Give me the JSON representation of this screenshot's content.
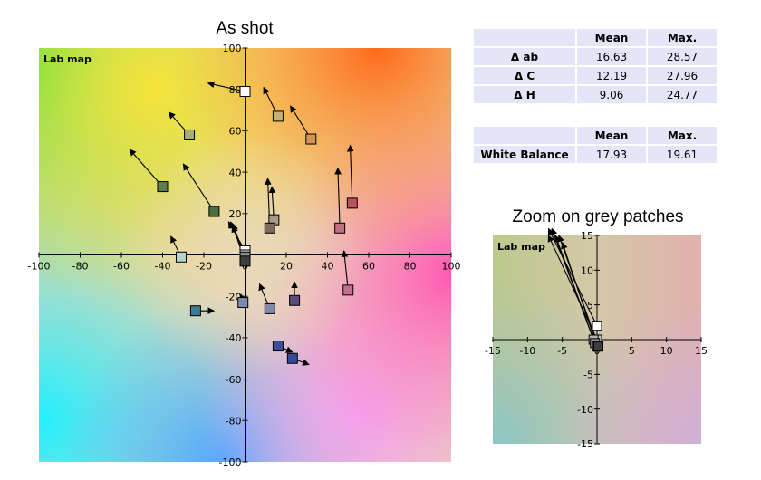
{
  "colors": {
    "axis": "#000000",
    "arrow": "#000000",
    "table_cell": "#e5e5f8"
  },
  "table1": {
    "headers": [
      "",
      "Mean",
      "Max."
    ],
    "rows": [
      {
        "label": "Δ ab",
        "mean": "16.63",
        "max": "28.57"
      },
      {
        "label": "Δ C",
        "mean": "12.19",
        "max": "27.96"
      },
      {
        "label": "Δ H",
        "mean": "9.06",
        "max": "24.77"
      }
    ]
  },
  "table2": {
    "headers": [
      "",
      "Mean",
      "Max."
    ],
    "rows": [
      {
        "label": "White Balance",
        "mean": "17.93",
        "max": "19.61"
      }
    ]
  },
  "chart_data": [
    {
      "type": "scatter",
      "title": "As shot",
      "inner_label": "Lab map",
      "xlim": [
        -100,
        100
      ],
      "ylim": [
        -100,
        100
      ],
      "xticks": [
        -100,
        -80,
        -60,
        -40,
        -20,
        0,
        20,
        40,
        60,
        80,
        100
      ],
      "yticks": [
        -100,
        -80,
        -60,
        -40,
        -20,
        20,
        40,
        60,
        80,
        100
      ],
      "grid": false,
      "points": [
        {
          "x": 0,
          "y": 79,
          "tx": -18,
          "ty": 83,
          "color": "#fbfbf3"
        },
        {
          "x": 16,
          "y": 67,
          "tx": 9,
          "ty": 81,
          "color": "#c8b070"
        },
        {
          "x": 32,
          "y": 56,
          "tx": 22,
          "ty": 72,
          "color": "#cf9654"
        },
        {
          "x": -27,
          "y": 58,
          "tx": -37,
          "ty": 69,
          "color": "#a7ad76"
        },
        {
          "x": -40,
          "y": 33,
          "tx": -56,
          "ty": 51,
          "color": "#5e7e53"
        },
        {
          "x": -15,
          "y": 21,
          "tx": -30,
          "ty": 44,
          "color": "#4f6c3d"
        },
        {
          "x": 52,
          "y": 25,
          "tx": 51,
          "ty": 53,
          "color": "#c24f5c"
        },
        {
          "x": 46,
          "y": 13,
          "tx": 45,
          "ty": 42,
          "color": "#c26d80"
        },
        {
          "x": 14,
          "y": 17,
          "tx": 13,
          "ty": 33,
          "color": "#a79888"
        },
        {
          "x": 12,
          "y": 13,
          "tx": 11,
          "ty": 37,
          "color": "#7d6a5e"
        },
        {
          "x": -31,
          "y": -1,
          "tx": -36,
          "ty": 9,
          "color": "#b5d4ca"
        },
        {
          "x": 0,
          "y": 2,
          "tx": -8,
          "ty": 16,
          "color": "#ffffff"
        },
        {
          "x": 0,
          "y": 0,
          "tx": -7,
          "ty": 16,
          "color": "#c9c9c9"
        },
        {
          "x": 0,
          "y": -1,
          "tx": -6,
          "ty": 15,
          "color": "#8d8d8d"
        },
        {
          "x": 0,
          "y": -3,
          "tx": -6,
          "ty": 14,
          "color": "#3e3e3e"
        },
        {
          "x": 50,
          "y": -17,
          "tx": 48,
          "ty": 2,
          "color": "#c27190"
        },
        {
          "x": 24,
          "y": -22,
          "tx": 24,
          "ty": -13,
          "color": "#5b4a7b"
        },
        {
          "x": -1,
          "y": -23,
          "tx": -2,
          "ty": -19,
          "color": "#7c8bac"
        },
        {
          "x": 12,
          "y": -26,
          "tx": 7,
          "ty": -14,
          "color": "#7f8aa9"
        },
        {
          "x": -24,
          "y": -27,
          "tx": -15,
          "ty": -27,
          "color": "#3d7c95"
        },
        {
          "x": 16,
          "y": -44,
          "tx": 23,
          "ty": -47,
          "color": "#3a4f9c"
        },
        {
          "x": 23,
          "y": -50,
          "tx": 31,
          "ty": -53,
          "color": "#38489a"
        }
      ]
    },
    {
      "type": "scatter",
      "title": "Zoom on grey patches",
      "inner_label": "Lab map",
      "xlim": [
        -15,
        15
      ],
      "ylim": [
        -15,
        15
      ],
      "xticks": [
        -15,
        -10,
        -5,
        0,
        5,
        10,
        15
      ],
      "yticks": [
        -15,
        -10,
        -5,
        5,
        10,
        15
      ],
      "grid": false,
      "points": [
        {
          "x": 0,
          "y": 2,
          "tx": -7,
          "ty": 16,
          "color": "#ffffff"
        },
        {
          "x": 0,
          "y": 0,
          "tx": -7,
          "ty": 15,
          "color": "#c9c9c9"
        },
        {
          "x": -0.5,
          "y": 0,
          "tx": -6.5,
          "ty": 16,
          "color": "#b5b5b5"
        },
        {
          "x": -0.3,
          "y": -0.5,
          "tx": -6,
          "ty": 15,
          "color": "#8d8d8d"
        },
        {
          "x": 0,
          "y": -1,
          "tx": -5,
          "ty": 14,
          "color": "#5e5e5e"
        },
        {
          "x": 0.2,
          "y": -1,
          "tx": -5.5,
          "ty": 15,
          "color": "#3e3e3e"
        }
      ]
    }
  ]
}
